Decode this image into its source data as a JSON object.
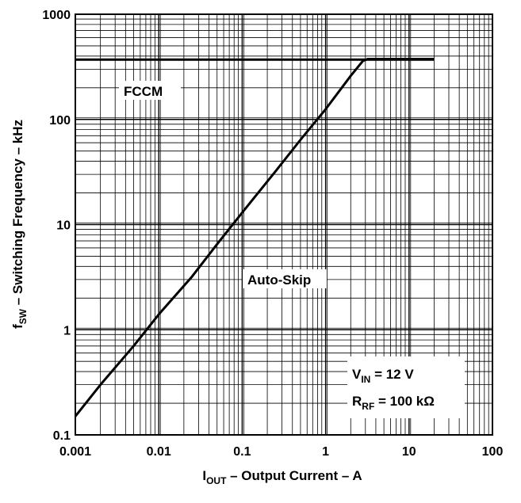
{
  "chart_data": {
    "type": "line",
    "x_scale": "log",
    "y_scale": "log",
    "xlim": [
      0.001,
      100
    ],
    "ylim": [
      0.1,
      1000
    ],
    "grid": true,
    "x_ticks": [
      "0.001",
      "0.01",
      "0.1",
      "1",
      "10",
      "100"
    ],
    "y_ticks": [
      "0.1",
      "1",
      "10",
      "100",
      "1000"
    ],
    "xlabel": {
      "main": "I",
      "sub": "OUT",
      "rest": " – Output Current – A"
    },
    "ylabel": {
      "main": "f",
      "sub": "SW",
      "rest": " – Switching Frequency – kHz"
    },
    "annotations": {
      "fccm": "FCCM",
      "autoskip": "Auto-Skip",
      "vin": {
        "main": "V",
        "sub": "IN",
        "rest": " = 12 V"
      },
      "rrf": {
        "main": "R",
        "sub": "RF",
        "rest": " = 100 kΩ"
      }
    },
    "series": [
      {
        "mode": "FCCM",
        "x": [
          0.001,
          20
        ],
        "y": [
          370,
          370
        ]
      },
      {
        "mode": "Auto-Skip",
        "x": [
          0.001,
          0.002,
          0.005,
          0.01,
          0.025,
          0.05,
          0.1,
          0.25,
          0.5,
          1,
          2,
          2.8,
          3.2,
          4,
          20
        ],
        "y": [
          0.15,
          0.3,
          0.7,
          1.4,
          3.2,
          6.5,
          13,
          32,
          64,
          125,
          260,
          360,
          375,
          375,
          375
        ]
      }
    ]
  }
}
